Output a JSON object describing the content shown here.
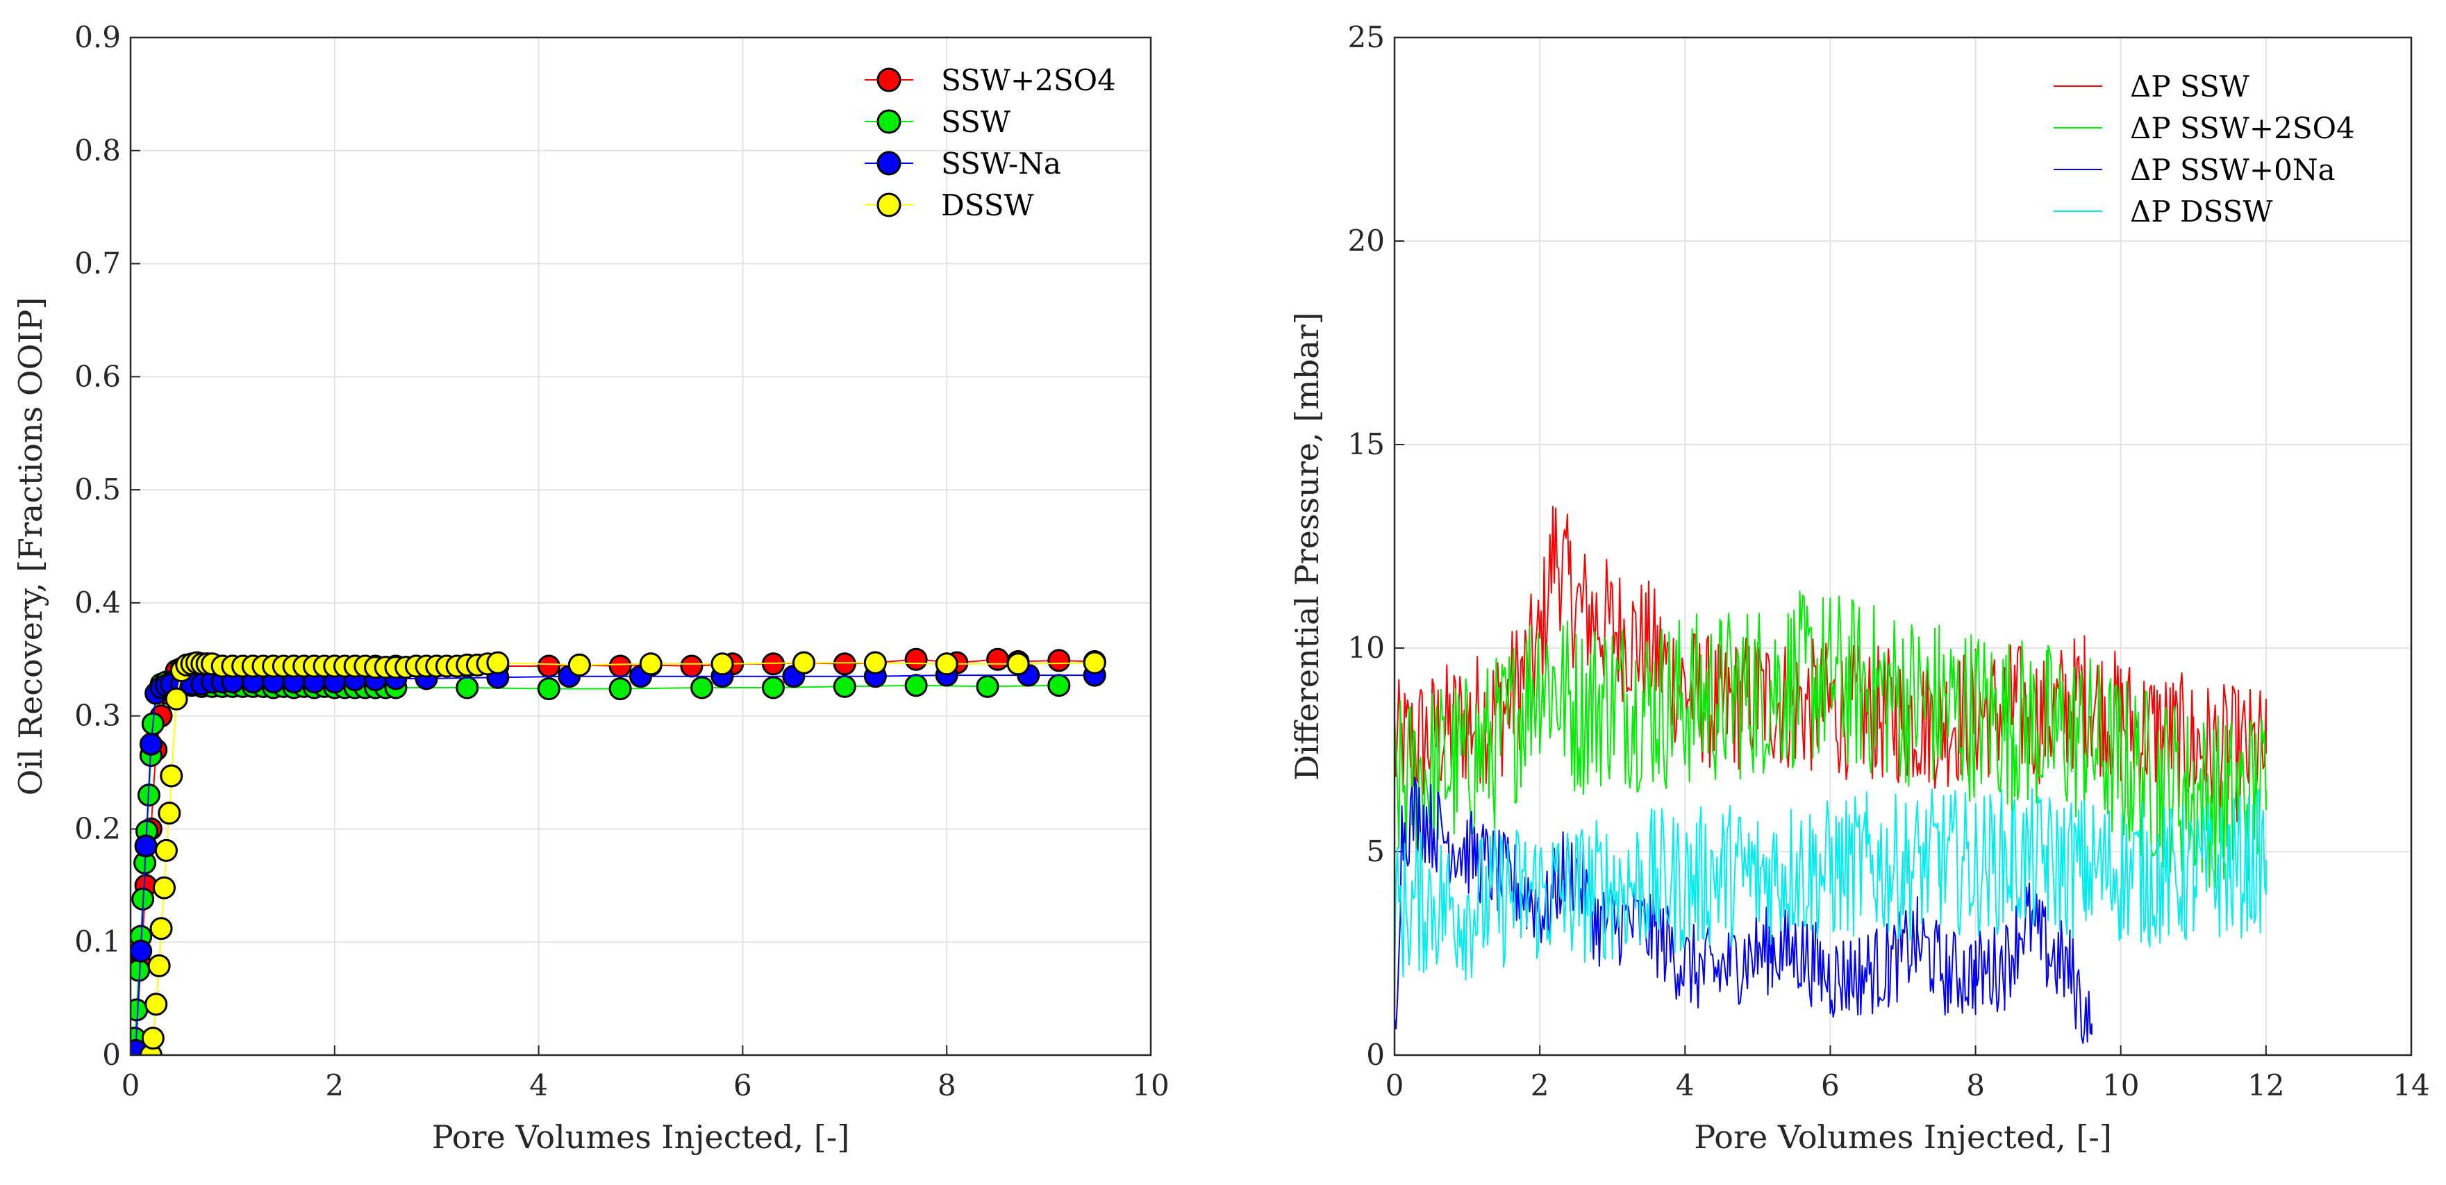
{
  "chart_data": [
    {
      "type": "scatter",
      "xlabel": "Pore Volumes Injected, [-]",
      "ylabel": "Oil Recovery, [Fractions OOIP]",
      "xlim": [
        0,
        10
      ],
      "ylim": [
        0,
        0.9
      ],
      "xticks": [
        "0",
        "2",
        "4",
        "6",
        "8",
        "10"
      ],
      "yticks": [
        "0",
        "0.1",
        "0.2",
        "0.3",
        "0.4",
        "0.5",
        "0.6",
        "0.7",
        "0.8",
        "0.9"
      ],
      "grid": true,
      "legend_position": "top-right",
      "series": [
        {
          "name": "SSW+2SO4",
          "color": "#ff0000",
          "x": [
            0.05,
            0.1,
            0.15,
            0.2,
            0.25,
            0.3,
            0.35,
            0.4,
            0.45,
            0.5,
            0.55,
            0.6,
            0.65,
            0.7,
            0.75,
            0.8,
            0.9,
            1.0,
            1.2,
            1.4,
            1.6,
            1.8,
            2.0,
            2.2,
            2.4,
            2.6,
            2.8,
            3.0,
            3.3,
            3.6,
            4.1,
            4.4,
            4.8,
            5.1,
            5.5,
            5.9,
            6.3,
            6.6,
            7.0,
            7.3,
            7.7,
            8.1,
            8.5,
            8.7,
            9.1,
            9.45
          ],
          "y": [
            0.005,
            0.08,
            0.15,
            0.2,
            0.27,
            0.3,
            0.32,
            0.33,
            0.34,
            0.342,
            0.344,
            0.345,
            0.346,
            0.346,
            0.346,
            0.345,
            0.344,
            0.344,
            0.344,
            0.344,
            0.344,
            0.344,
            0.344,
            0.344,
            0.344,
            0.344,
            0.344,
            0.344,
            0.344,
            0.344,
            0.344,
            0.345,
            0.344,
            0.345,
            0.344,
            0.346,
            0.346,
            0.347,
            0.346,
            0.347,
            0.35,
            0.347,
            0.35,
            0.348,
            0.349,
            0.348
          ]
        },
        {
          "name": "SSW",
          "color": "#00ee00",
          "x": [
            0.02,
            0.04,
            0.06,
            0.08,
            0.1,
            0.12,
            0.14,
            0.16,
            0.18,
            0.2,
            0.22,
            0.25,
            0.3,
            0.35,
            0.4,
            0.5,
            0.6,
            0.7,
            0.8,
            0.9,
            1.0,
            1.1,
            1.2,
            1.3,
            1.4,
            1.5,
            1.6,
            1.7,
            1.8,
            1.9,
            2.0,
            2.1,
            2.2,
            2.3,
            2.4,
            2.5,
            2.6,
            3.3,
            4.1,
            4.8,
            5.6,
            6.3,
            7.0,
            7.7,
            8.4,
            9.1
          ],
          "y": [
            0.0,
            0.015,
            0.04,
            0.075,
            0.105,
            0.138,
            0.17,
            0.198,
            0.23,
            0.265,
            0.293,
            0.32,
            0.328,
            0.33,
            0.33,
            0.328,
            0.327,
            0.326,
            0.326,
            0.326,
            0.326,
            0.326,
            0.326,
            0.326,
            0.325,
            0.326,
            0.325,
            0.326,
            0.325,
            0.326,
            0.325,
            0.325,
            0.325,
            0.325,
            0.325,
            0.325,
            0.325,
            0.325,
            0.324,
            0.324,
            0.325,
            0.325,
            0.326,
            0.327,
            0.326,
            0.327
          ]
        },
        {
          "name": "SSW-Na",
          "color": "#0000ff",
          "x": [
            0.02,
            0.05,
            0.1,
            0.15,
            0.2,
            0.25,
            0.3,
            0.35,
            0.4,
            0.5,
            0.6,
            0.7,
            0.8,
            0.9,
            1.0,
            1.2,
            1.4,
            1.6,
            1.8,
            2.0,
            2.2,
            2.4,
            2.6,
            2.9,
            3.6,
            4.3,
            5.0,
            5.8,
            6.5,
            7.3,
            8.0,
            8.8,
            9.45
          ],
          "y": [
            0.0,
            0.004,
            0.092,
            0.185,
            0.275,
            0.32,
            0.325,
            0.327,
            0.328,
            0.328,
            0.328,
            0.328,
            0.33,
            0.33,
            0.33,
            0.33,
            0.33,
            0.33,
            0.33,
            0.33,
            0.332,
            0.332,
            0.333,
            0.333,
            0.334,
            0.335,
            0.335,
            0.335,
            0.335,
            0.335,
            0.336,
            0.336,
            0.336
          ]
        },
        {
          "name": "DSSW",
          "color": "#ffff00",
          "x": [
            0.2,
            0.22,
            0.25,
            0.28,
            0.3,
            0.33,
            0.35,
            0.38,
            0.4,
            0.45,
            0.5,
            0.55,
            0.6,
            0.65,
            0.7,
            0.75,
            0.8,
            0.9,
            1.0,
            1.1,
            1.2,
            1.3,
            1.4,
            1.5,
            1.6,
            1.7,
            1.8,
            1.9,
            2.0,
            2.1,
            2.2,
            2.3,
            2.4,
            2.5,
            2.6,
            2.7,
            2.8,
            2.9,
            3.0,
            3.1,
            3.2,
            3.3,
            3.4,
            3.5,
            3.6,
            4.4,
            5.1,
            5.8,
            6.6,
            7.3,
            8.0,
            8.7,
            9.45
          ],
          "y": [
            0.0,
            0.015,
            0.045,
            0.079,
            0.112,
            0.148,
            0.181,
            0.214,
            0.247,
            0.315,
            0.34,
            0.345,
            0.346,
            0.347,
            0.346,
            0.346,
            0.346,
            0.344,
            0.344,
            0.344,
            0.344,
            0.344,
            0.344,
            0.344,
            0.344,
            0.344,
            0.344,
            0.344,
            0.344,
            0.344,
            0.344,
            0.344,
            0.343,
            0.343,
            0.343,
            0.343,
            0.344,
            0.344,
            0.344,
            0.344,
            0.344,
            0.345,
            0.345,
            0.346,
            0.347,
            0.345,
            0.346,
            0.346,
            0.347,
            0.347,
            0.346,
            0.346,
            0.347
          ]
        }
      ]
    },
    {
      "type": "line",
      "xlabel": "Pore Volumes Injected, [-]",
      "ylabel": "Differential Pressure, [mbar]",
      "xlim": [
        0,
        14
      ],
      "ylim": [
        0,
        25
      ],
      "xticks": [
        "0",
        "2",
        "4",
        "6",
        "8",
        "10",
        "12",
        "14"
      ],
      "yticks": [
        "0",
        "5",
        "10",
        "15",
        "20",
        "25"
      ],
      "grid": true,
      "legend_position": "top-right",
      "series": [
        {
          "name": "ΔP SSW",
          "color": "#ff0000",
          "x": [
            0,
            0.5,
            1.0,
            1.5,
            2.0,
            2.2,
            2.5,
            3.0,
            3.5,
            4.0,
            4.5,
            5.0,
            5.5,
            6.0,
            6.5,
            7.0,
            7.5,
            8.0,
            8.5,
            9.0,
            9.5,
            10.0,
            10.5,
            11.0,
            11.5,
            12.0
          ],
          "y": [
            7.5,
            7.8,
            8.2,
            8.5,
            10.0,
            12.5,
            11.0,
            10.5,
            10.0,
            9.0,
            8.5,
            8.8,
            8.6,
            8.5,
            8.4,
            8.3,
            8.2,
            8.4,
            8.5,
            8.3,
            8.8,
            8.2,
            7.9,
            7.6,
            7.4,
            7.4
          ],
          "noise": 1.7
        },
        {
          "name": "ΔP SSW+2SO4",
          "color": "#00ee00",
          "x": [
            0,
            0.5,
            1.0,
            1.5,
            2.0,
            2.5,
            3.0,
            3.5,
            4.0,
            4.5,
            5.0,
            5.5,
            6.0,
            6.5,
            7.0,
            7.5,
            8.0,
            8.5,
            9.0,
            9.5,
            10.0,
            10.5,
            11.0,
            11.5,
            12.0
          ],
          "y": [
            6.5,
            7.0,
            7.2,
            7.8,
            9.5,
            8.5,
            8.8,
            8.6,
            8.7,
            8.8,
            9.0,
            9.2,
            9.3,
            9.0,
            8.8,
            8.6,
            8.4,
            8.2,
            8.0,
            7.8,
            7.2,
            6.8,
            6.4,
            6.2,
            6.5
          ],
          "noise": 2.2
        },
        {
          "name": "ΔP SSW+0Na",
          "color": "#0000ff",
          "x": [
            0,
            0.1,
            0.3,
            0.6,
            1.0,
            1.4,
            1.8,
            2.1,
            2.3,
            2.5,
            2.8,
            3.2,
            3.6,
            4.0,
            4.4,
            4.8,
            5.2,
            5.6,
            6.0,
            6.4,
            6.8,
            7.2,
            7.6,
            8.0,
            8.4,
            8.7,
            9.0,
            9.3,
            9.6
          ],
          "y": [
            0.3,
            5.5,
            6.0,
            5.5,
            5.0,
            4.5,
            4.0,
            3.5,
            4.5,
            4.5,
            3.2,
            3.3,
            3.0,
            2.2,
            2.0,
            2.4,
            2.6,
            2.5,
            1.9,
            2.0,
            2.2,
            2.8,
            2.0,
            2.0,
            2.2,
            3.4,
            2.5,
            2.1,
            0.5
          ],
          "noise": 1.1
        },
        {
          "name": "ΔP DSSW",
          "color": "#00eeee",
          "x": [
            0,
            0.5,
            1.0,
            1.5,
            2.0,
            2.5,
            3.0,
            3.5,
            4.0,
            4.5,
            5.0,
            5.5,
            6.0,
            6.5,
            7.0,
            7.5,
            8.0,
            8.5,
            9.0,
            9.5,
            10.0,
            10.5,
            11.0,
            11.5,
            12.0
          ],
          "y": [
            3.5,
            3.8,
            3.6,
            3.9,
            4.0,
            4.0,
            4.1,
            4.3,
            4.2,
            4.5,
            4.4,
            4.6,
            4.5,
            4.7,
            4.6,
            4.8,
            4.7,
            4.8,
            4.7,
            4.6,
            4.5,
            4.4,
            4.4,
            4.6,
            4.8
          ],
          "noise": 1.8
        }
      ]
    }
  ]
}
